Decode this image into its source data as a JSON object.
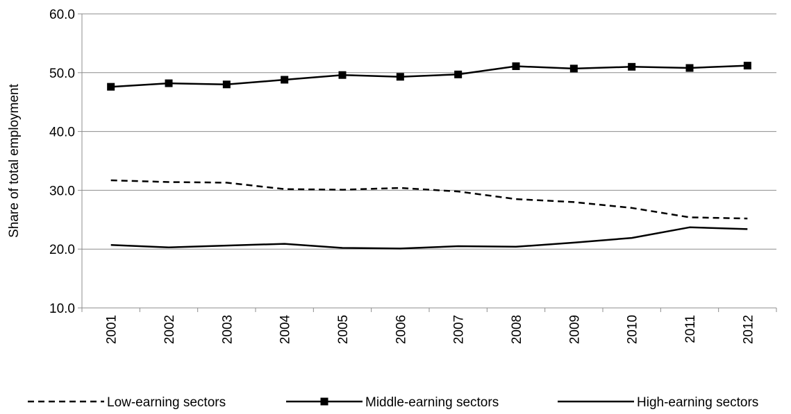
{
  "chart_data": {
    "type": "line",
    "title": "",
    "xlabel": "",
    "ylabel": "Share of total employment",
    "categories": [
      "2001",
      "2002",
      "2003",
      "2004",
      "2005",
      "2006",
      "2007",
      "2008",
      "2009",
      "2010",
      "2011",
      "2012"
    ],
    "ylim": [
      10,
      60
    ],
    "yticks": [
      "10.0",
      "20.0",
      "30.0",
      "40.0",
      "50.0",
      "60.0"
    ],
    "grid": "horizontal",
    "legend_position": "bottom",
    "series": [
      {
        "name": "Low-earning sectors",
        "style": "dashed",
        "color": "#000000",
        "values": [
          31.7,
          31.4,
          31.3,
          30.2,
          30.1,
          30.4,
          29.8,
          28.5,
          28.0,
          27.0,
          25.4,
          25.2
        ]
      },
      {
        "name": "Middle-earning sectors",
        "style": "solid-square-markers",
        "color": "#000000",
        "values": [
          47.6,
          48.2,
          48.0,
          48.8,
          49.6,
          49.3,
          49.7,
          51.1,
          50.7,
          51.0,
          50.8,
          51.2
        ]
      },
      {
        "name": "High-earning sectors",
        "style": "solid",
        "color": "#000000",
        "values": [
          20.7,
          20.3,
          20.6,
          20.9,
          20.2,
          20.1,
          20.5,
          20.4,
          21.1,
          21.9,
          23.7,
          23.4
        ]
      }
    ]
  }
}
